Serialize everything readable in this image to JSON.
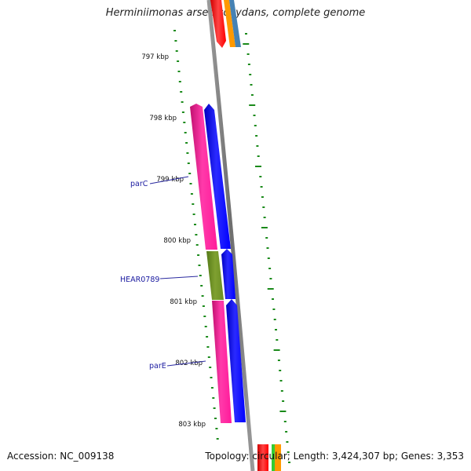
{
  "title": "Herminiimonas arsenicoxydans, complete genome",
  "footer": {
    "accession": "Accession: NC_009138",
    "summary": "Topology: circular; Length: 3,424,307 bp; Genes: 3,353"
  },
  "scale_labels": [
    "797 kbp",
    "798 kbp",
    "799 kbp",
    "800 kbp",
    "801 kbp",
    "802 kbp",
    "803 kbp"
  ],
  "gene_labels": [
    "parC",
    "HEAR0789",
    "parE"
  ],
  "colors": {
    "backbone": "#808080",
    "tick_green": "#1a8a1a",
    "magenta": "#ff1a9a",
    "olive": "#6b8e23",
    "blue": "#0000ff",
    "red": "#ff0000",
    "orange": "#ff9900",
    "steelblue": "#4682b4",
    "label_blue": "#1a1aa0"
  }
}
